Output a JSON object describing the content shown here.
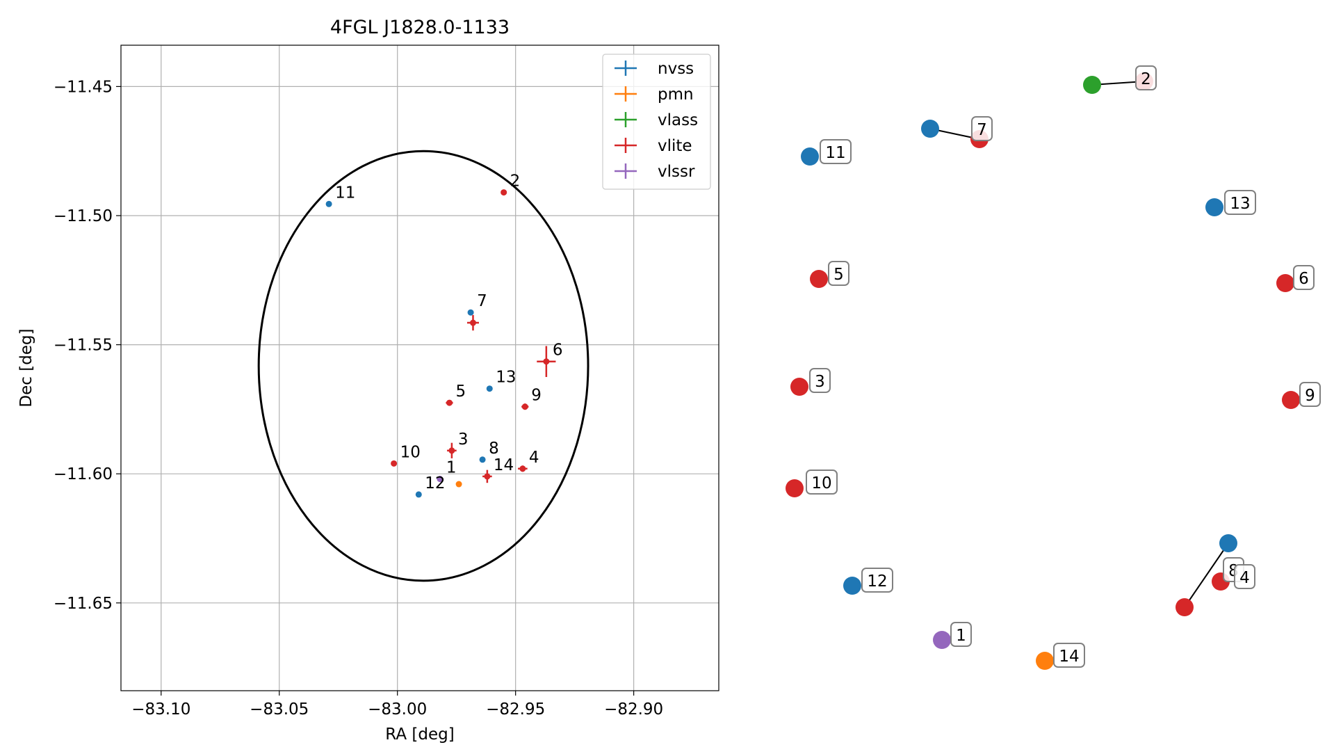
{
  "chart_data": [
    {
      "type": "scatter",
      "title": "4FGL J1828.0-1133",
      "xlabel": "RA [deg]",
      "ylabel": "Dec [deg]",
      "xlim": [
        -83.117,
        -82.864
      ],
      "ylim": [
        -11.684,
        -11.434
      ],
      "x_reversed": false,
      "grid": true,
      "legend_position": "top-right",
      "xticks": [
        -83.1,
        -83.05,
        -83.0,
        -82.95,
        -82.9
      ],
      "xtick_labels": [
        "−83.10",
        "−83.05",
        "−83.00",
        "−82.95",
        "−82.90"
      ],
      "yticks": [
        -11.45,
        -11.5,
        -11.55,
        -11.6,
        -11.65
      ],
      "ytick_labels": [
        "−11.45",
        "−11.50",
        "−11.55",
        "−11.60",
        "−11.65"
      ],
      "ellipse": {
        "center_ra": -82.989,
        "center_dec": -11.5582,
        "half_width_ra": 0.0697,
        "half_height_dec": 0.0832
      },
      "series": [
        {
          "name": "nvss",
          "color": "#1f77b4",
          "points": [
            {
              "id": "11",
              "ra": -83.029,
              "dec": -11.4955,
              "err_ra": 0.0,
              "err_dec": 0.0
            },
            {
              "id": "7",
              "ra": -82.969,
              "dec": -11.5375,
              "err_ra": 0.0,
              "err_dec": 0.0
            },
            {
              "id": "13",
              "ra": -82.961,
              "dec": -11.567,
              "err_ra": 0.0,
              "err_dec": 0.0
            },
            {
              "id": "8",
              "ra": -82.964,
              "dec": -11.5945,
              "err_ra": 0.0,
              "err_dec": 0.0
            },
            {
              "id": "12",
              "ra": -82.991,
              "dec": -11.608,
              "err_ra": 0.0,
              "err_dec": 0.0
            }
          ]
        },
        {
          "name": "pmn",
          "color": "#ff7f0e",
          "points": [
            {
              "id": "14",
              "ra": -82.974,
              "dec": -11.604,
              "err_ra": 0.0,
              "err_dec": 0.0
            }
          ]
        },
        {
          "name": "vlass",
          "color": "#2ca02c",
          "points": []
        },
        {
          "name": "vlite",
          "color": "#d62728",
          "points": [
            {
              "id": "2",
              "ra": -82.955,
              "dec": -11.491,
              "err_ra": 0.0005,
              "err_dec": 0.0007
            },
            {
              "id": "7",
              "ra": -82.968,
              "dec": -11.5415,
              "err_ra": 0.0025,
              "err_dec": 0.003
            },
            {
              "id": "6",
              "ra": -82.937,
              "dec": -11.5565,
              "err_ra": 0.004,
              "err_dec": 0.006
            },
            {
              "id": "5",
              "ra": -82.978,
              "dec": -11.5725,
              "err_ra": 0.0015,
              "err_dec": 0.0008
            },
            {
              "id": "9",
              "ra": -82.946,
              "dec": -11.574,
              "err_ra": 0.0015,
              "err_dec": 0.0012
            },
            {
              "id": "3",
              "ra": -82.977,
              "dec": -11.591,
              "err_ra": 0.002,
              "err_dec": 0.003
            },
            {
              "id": "10",
              "ra": -83.0015,
              "dec": -11.596,
              "err_ra": 0.0008,
              "err_dec": 0.0008
            },
            {
              "id": "4",
              "ra": -82.947,
              "dec": -11.598,
              "err_ra": 0.002,
              "err_dec": 0.0012
            },
            {
              "id": "14",
              "ra": -82.962,
              "dec": -11.601,
              "err_ra": 0.002,
              "err_dec": 0.0025
            }
          ]
        },
        {
          "name": "vlssr",
          "color": "#9467bd",
          "points": [
            {
              "id": "1",
              "ra": -82.982,
              "dec": -11.602,
              "err_ra": 0.0008,
              "err_dec": 0.0012
            }
          ]
        }
      ],
      "point_labels": [
        {
          "text": "11",
          "ra": -83.029,
          "dec": -11.4955
        },
        {
          "text": "2",
          "ra": -82.955,
          "dec": -11.491
        },
        {
          "text": "7",
          "ra": -82.969,
          "dec": -11.5375
        },
        {
          "text": "6",
          "ra": -82.937,
          "dec": -11.5565
        },
        {
          "text": "13",
          "ra": -82.961,
          "dec": -11.567
        },
        {
          "text": "5",
          "ra": -82.978,
          "dec": -11.5725
        },
        {
          "text": "9",
          "ra": -82.946,
          "dec": -11.574
        },
        {
          "text": "10",
          "ra": -83.0015,
          "dec": -11.596
        },
        {
          "text": "3",
          "ra": -82.977,
          "dec": -11.591
        },
        {
          "text": "8",
          "ra": -82.964,
          "dec": -11.5945
        },
        {
          "text": "4",
          "ra": -82.947,
          "dec": -11.598
        },
        {
          "text": "1",
          "ra": -82.982,
          "dec": -11.602
        },
        {
          "text": "14",
          "ra": -82.962,
          "dec": -11.601
        },
        {
          "text": "12",
          "ra": -82.991,
          "dec": -11.608
        }
      ]
    },
    {
      "type": "scatter",
      "title": "",
      "axes_visible": false,
      "description": "",
      "nodes": [
        {
          "id": "2",
          "color": "#d62728"
        },
        {
          "id": "2g",
          "color": "#2ca02c"
        },
        {
          "id": "7",
          "color": "#d62728"
        },
        {
          "id": "7b",
          "color": "#1f77b4"
        },
        {
          "id": "11",
          "color": "#1f77b4"
        },
        {
          "id": "13",
          "color": "#1f77b4"
        },
        {
          "id": "5",
          "color": "#d62728"
        },
        {
          "id": "6",
          "color": "#d62728"
        },
        {
          "id": "3",
          "color": "#d62728"
        },
        {
          "id": "9",
          "color": "#d62728"
        },
        {
          "id": "10",
          "color": "#d62728"
        },
        {
          "id": "8b",
          "color": "#1f77b4"
        },
        {
          "id": "4",
          "color": "#d62728"
        },
        {
          "id": "8",
          "color": "#d62728"
        },
        {
          "id": "12",
          "color": "#1f77b4"
        },
        {
          "id": "1",
          "color": "#9467bd"
        },
        {
          "id": "14",
          "color": "#ff7f0e"
        }
      ],
      "labels": [
        "2",
        "7",
        "11",
        "13",
        "5",
        "6",
        "3",
        "9",
        "10",
        "8",
        "4",
        "12",
        "1",
        "14"
      ],
      "edges": [
        [
          "2g",
          "2"
        ],
        [
          "7b",
          "7"
        ],
        [
          "8",
          "8b"
        ]
      ]
    }
  ]
}
